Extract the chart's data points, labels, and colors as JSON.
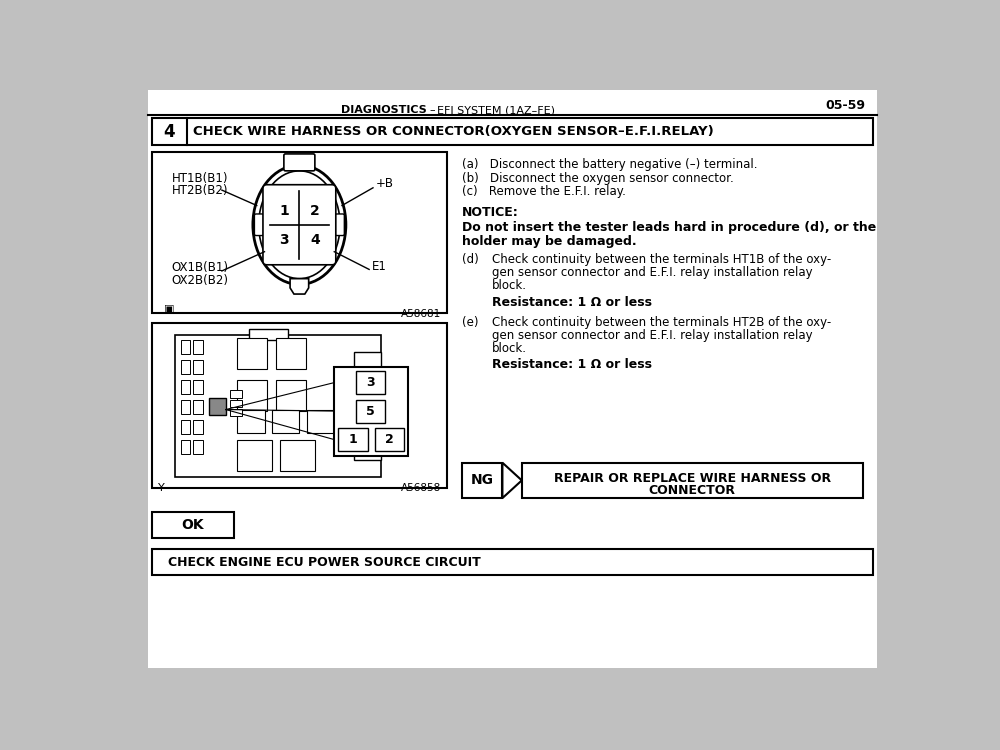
{
  "page_number": "05-59",
  "header_left": "DIAGNOSTICS",
  "header_dash": "–",
  "header_right": "EFI SYSTEM (1AZ–FE)",
  "step_number": "4",
  "step_title": "CHECK WIRE HARNESS OR CONNECTOR(OXYGEN SENSOR–E.F.I.RELAY)",
  "connector_ref": "A58681",
  "relay_ref": "A56858",
  "relay_label_y": "Y",
  "instructions": [
    "(a)   Disconnect the battery negative (–) terminal.",
    "(b)   Disconnect the oxygen sensor connector.",
    "(c)   Remove the E.F.I. relay."
  ],
  "notice_title": "NOTICE:",
  "notice_bold_line1": "Do not insert the tester leads hard in procedure (d), or the",
  "notice_bold_line2": "holder may be damaged.",
  "step_d_label": "(d)",
  "step_d_lines": [
    "Check continuity between the terminals HT1B of the oxy-",
    "gen sensor connector and E.F.I. relay installation relay",
    "block."
  ],
  "step_d_resistance": "Resistance: 1 Ω or less",
  "step_e_label": "(e)",
  "step_e_lines": [
    "Check continuity between the terminals HT2B of the oxy-",
    "gen sensor connector and E.F.I. relay installation relay",
    "block."
  ],
  "step_e_resistance": "Resistance: 1 Ω or less",
  "ng_label": "NG",
  "ng_text_line1": "REPAIR OR REPLACE WIRE HARNESS OR",
  "ng_text_line2": "CONNECTOR",
  "ok_label": "OK",
  "bottom_title": "CHECK ENGINE ECU POWER SOURCE CIRCUIT",
  "bg_color": "#c0c0c0",
  "page_bg": "#ffffff",
  "text_color": "#000000"
}
